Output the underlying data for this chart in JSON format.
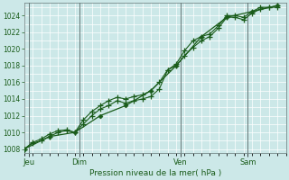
{
  "bg_color": "#cce8e8",
  "plot_bg_color": "#cce8e8",
  "grid_color": "#b0cccc",
  "line_color": "#1a5c1a",
  "xlabel": "Pression niveau de la mer( hPa )",
  "ylim": [
    1007.5,
    1025.5
  ],
  "yticks": [
    1008,
    1010,
    1012,
    1014,
    1016,
    1018,
    1020,
    1022,
    1024
  ],
  "day_labels": [
    "Jeu",
    "Dim",
    "Ven",
    "Sam"
  ],
  "day_positions": [
    0.5,
    6.5,
    18.5,
    26.5
  ],
  "day_vlines": [
    0.5,
    6.5,
    18.5,
    26.5
  ],
  "xlim": [
    0,
    31
  ],
  "series1_x": [
    0,
    1,
    2,
    3,
    4,
    5,
    6,
    7,
    8,
    9,
    10,
    11,
    12,
    13,
    14,
    15,
    16,
    17,
    18,
    19,
    20,
    21,
    22,
    23,
    24,
    25,
    26,
    27,
    28,
    29,
    30
  ],
  "series1_y": [
    1008.0,
    1008.8,
    1009.2,
    1009.8,
    1010.2,
    1010.3,
    1010.0,
    1011.5,
    1012.5,
    1013.2,
    1013.8,
    1014.2,
    1014.0,
    1014.3,
    1014.5,
    1015.0,
    1016.0,
    1017.5,
    1018.2,
    1019.8,
    1021.0,
    1021.5,
    1021.8,
    1022.8,
    1024.0,
    1024.0,
    1023.8,
    1024.5,
    1025.0,
    1025.0,
    1025.2
  ],
  "series2_x": [
    0,
    1,
    2,
    3,
    4,
    5,
    6,
    7,
    8,
    9,
    10,
    11,
    12,
    13,
    14,
    15,
    16,
    17,
    18,
    19,
    20,
    21,
    22,
    23,
    24,
    25,
    26,
    27,
    28,
    29,
    30
  ],
  "series2_y": [
    1008.0,
    1008.7,
    1009.0,
    1009.5,
    1010.0,
    1010.2,
    1010.0,
    1011.0,
    1012.0,
    1012.8,
    1013.2,
    1013.8,
    1013.5,
    1013.8,
    1014.0,
    1014.3,
    1015.2,
    1017.5,
    1018.0,
    1019.2,
    1020.2,
    1021.0,
    1021.5,
    1022.5,
    1023.8,
    1023.8,
    1023.5,
    1024.3,
    1024.8,
    1025.0,
    1025.0
  ],
  "series3_x": [
    0,
    3,
    6,
    9,
    12,
    15,
    18,
    21,
    24,
    27,
    30
  ],
  "series3_y": [
    1008.0,
    1009.5,
    1010.0,
    1012.0,
    1013.2,
    1015.0,
    1018.0,
    1021.5,
    1023.8,
    1024.5,
    1025.2
  ]
}
